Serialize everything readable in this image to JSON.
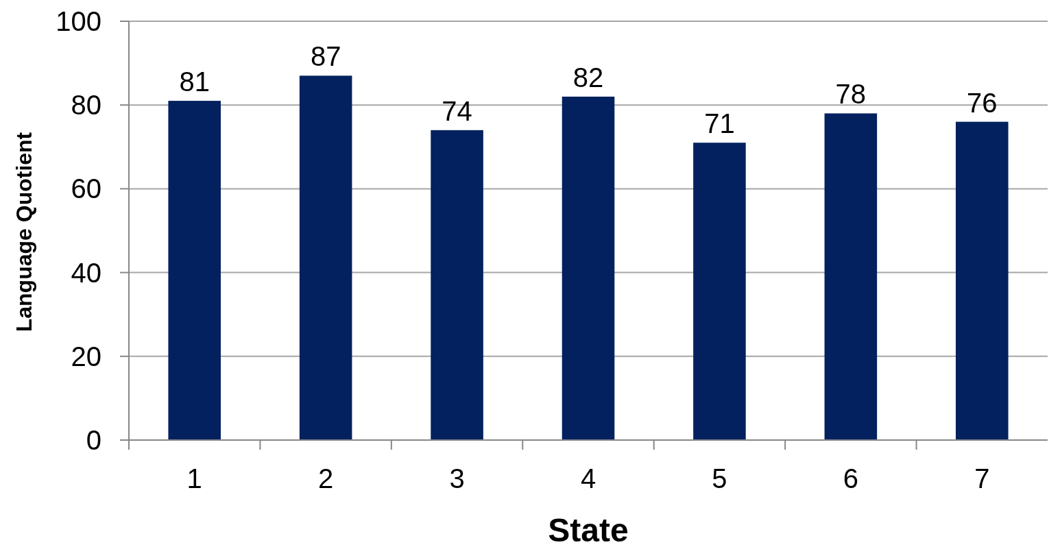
{
  "chart_data": {
    "type": "bar",
    "xlabel": "State",
    "ylabel": "Language Quotient",
    "categories": [
      "1",
      "2",
      "3",
      "4",
      "5",
      "6",
      "7"
    ],
    "values": [
      81,
      87,
      74,
      82,
      71,
      78,
      76
    ],
    "color": "#03215e",
    "ylim": [
      0,
      100
    ],
    "yticks": [
      0,
      20,
      40,
      60,
      80,
      100
    ],
    "grid": "y",
    "data_labels": true
  }
}
